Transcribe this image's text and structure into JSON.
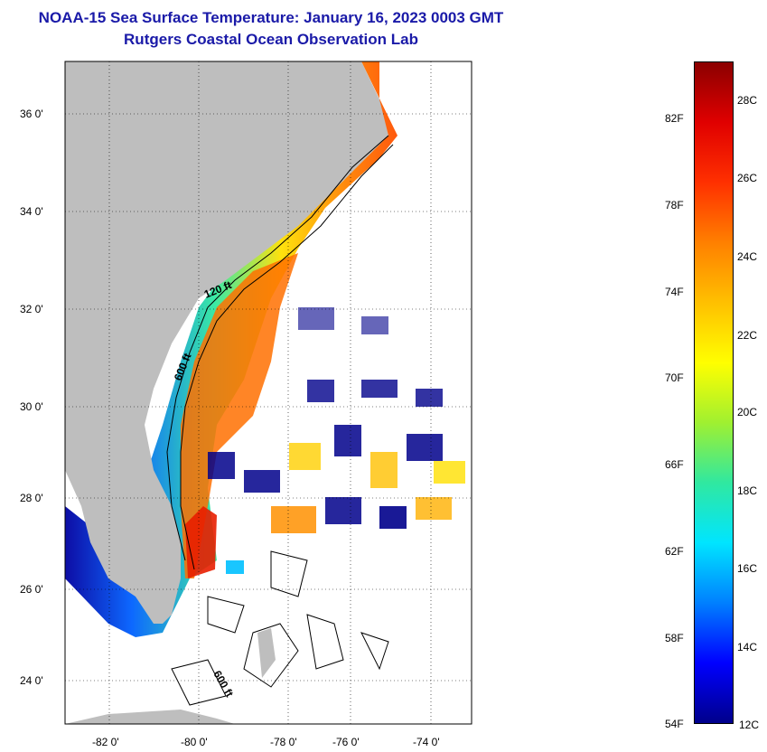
{
  "title": {
    "line1": "NOAA-15 Sea Surface Temperature:  January 16, 2023 0003 GMT",
    "line2": "Rutgers Coastal Ocean Observation Lab"
  },
  "map": {
    "lat_labels": [
      "36 0'",
      "34 0'",
      "32 0'",
      "30 0'",
      "28 0'",
      "26 0'",
      "24 0'"
    ],
    "lon_labels": [
      "-82 0'",
      "-80 0'",
      "-78 0'",
      "-76 0'",
      "-74 0'"
    ],
    "contour_labels": [
      "120 ft",
      "600 ft",
      "600 ft"
    ],
    "colors": {
      "land": "#bebebe",
      "grid": "#000000"
    }
  },
  "colorbar": {
    "fahrenheit_labels": [
      "82F",
      "78F",
      "74F",
      "70F",
      "66F",
      "62F",
      "58F",
      "54F"
    ],
    "celsius_labels": [
      "28C",
      "26C",
      "24C",
      "22C",
      "20C",
      "18C",
      "16C",
      "14C",
      "12C"
    ],
    "color_stops": [
      "#00008b",
      "#0000ff",
      "#0080ff",
      "#00e5ff",
      "#30e8a0",
      "#a0f030",
      "#ffff00",
      "#ffc000",
      "#ff8000",
      "#ff3000",
      "#e00000",
      "#8b0000"
    ]
  }
}
